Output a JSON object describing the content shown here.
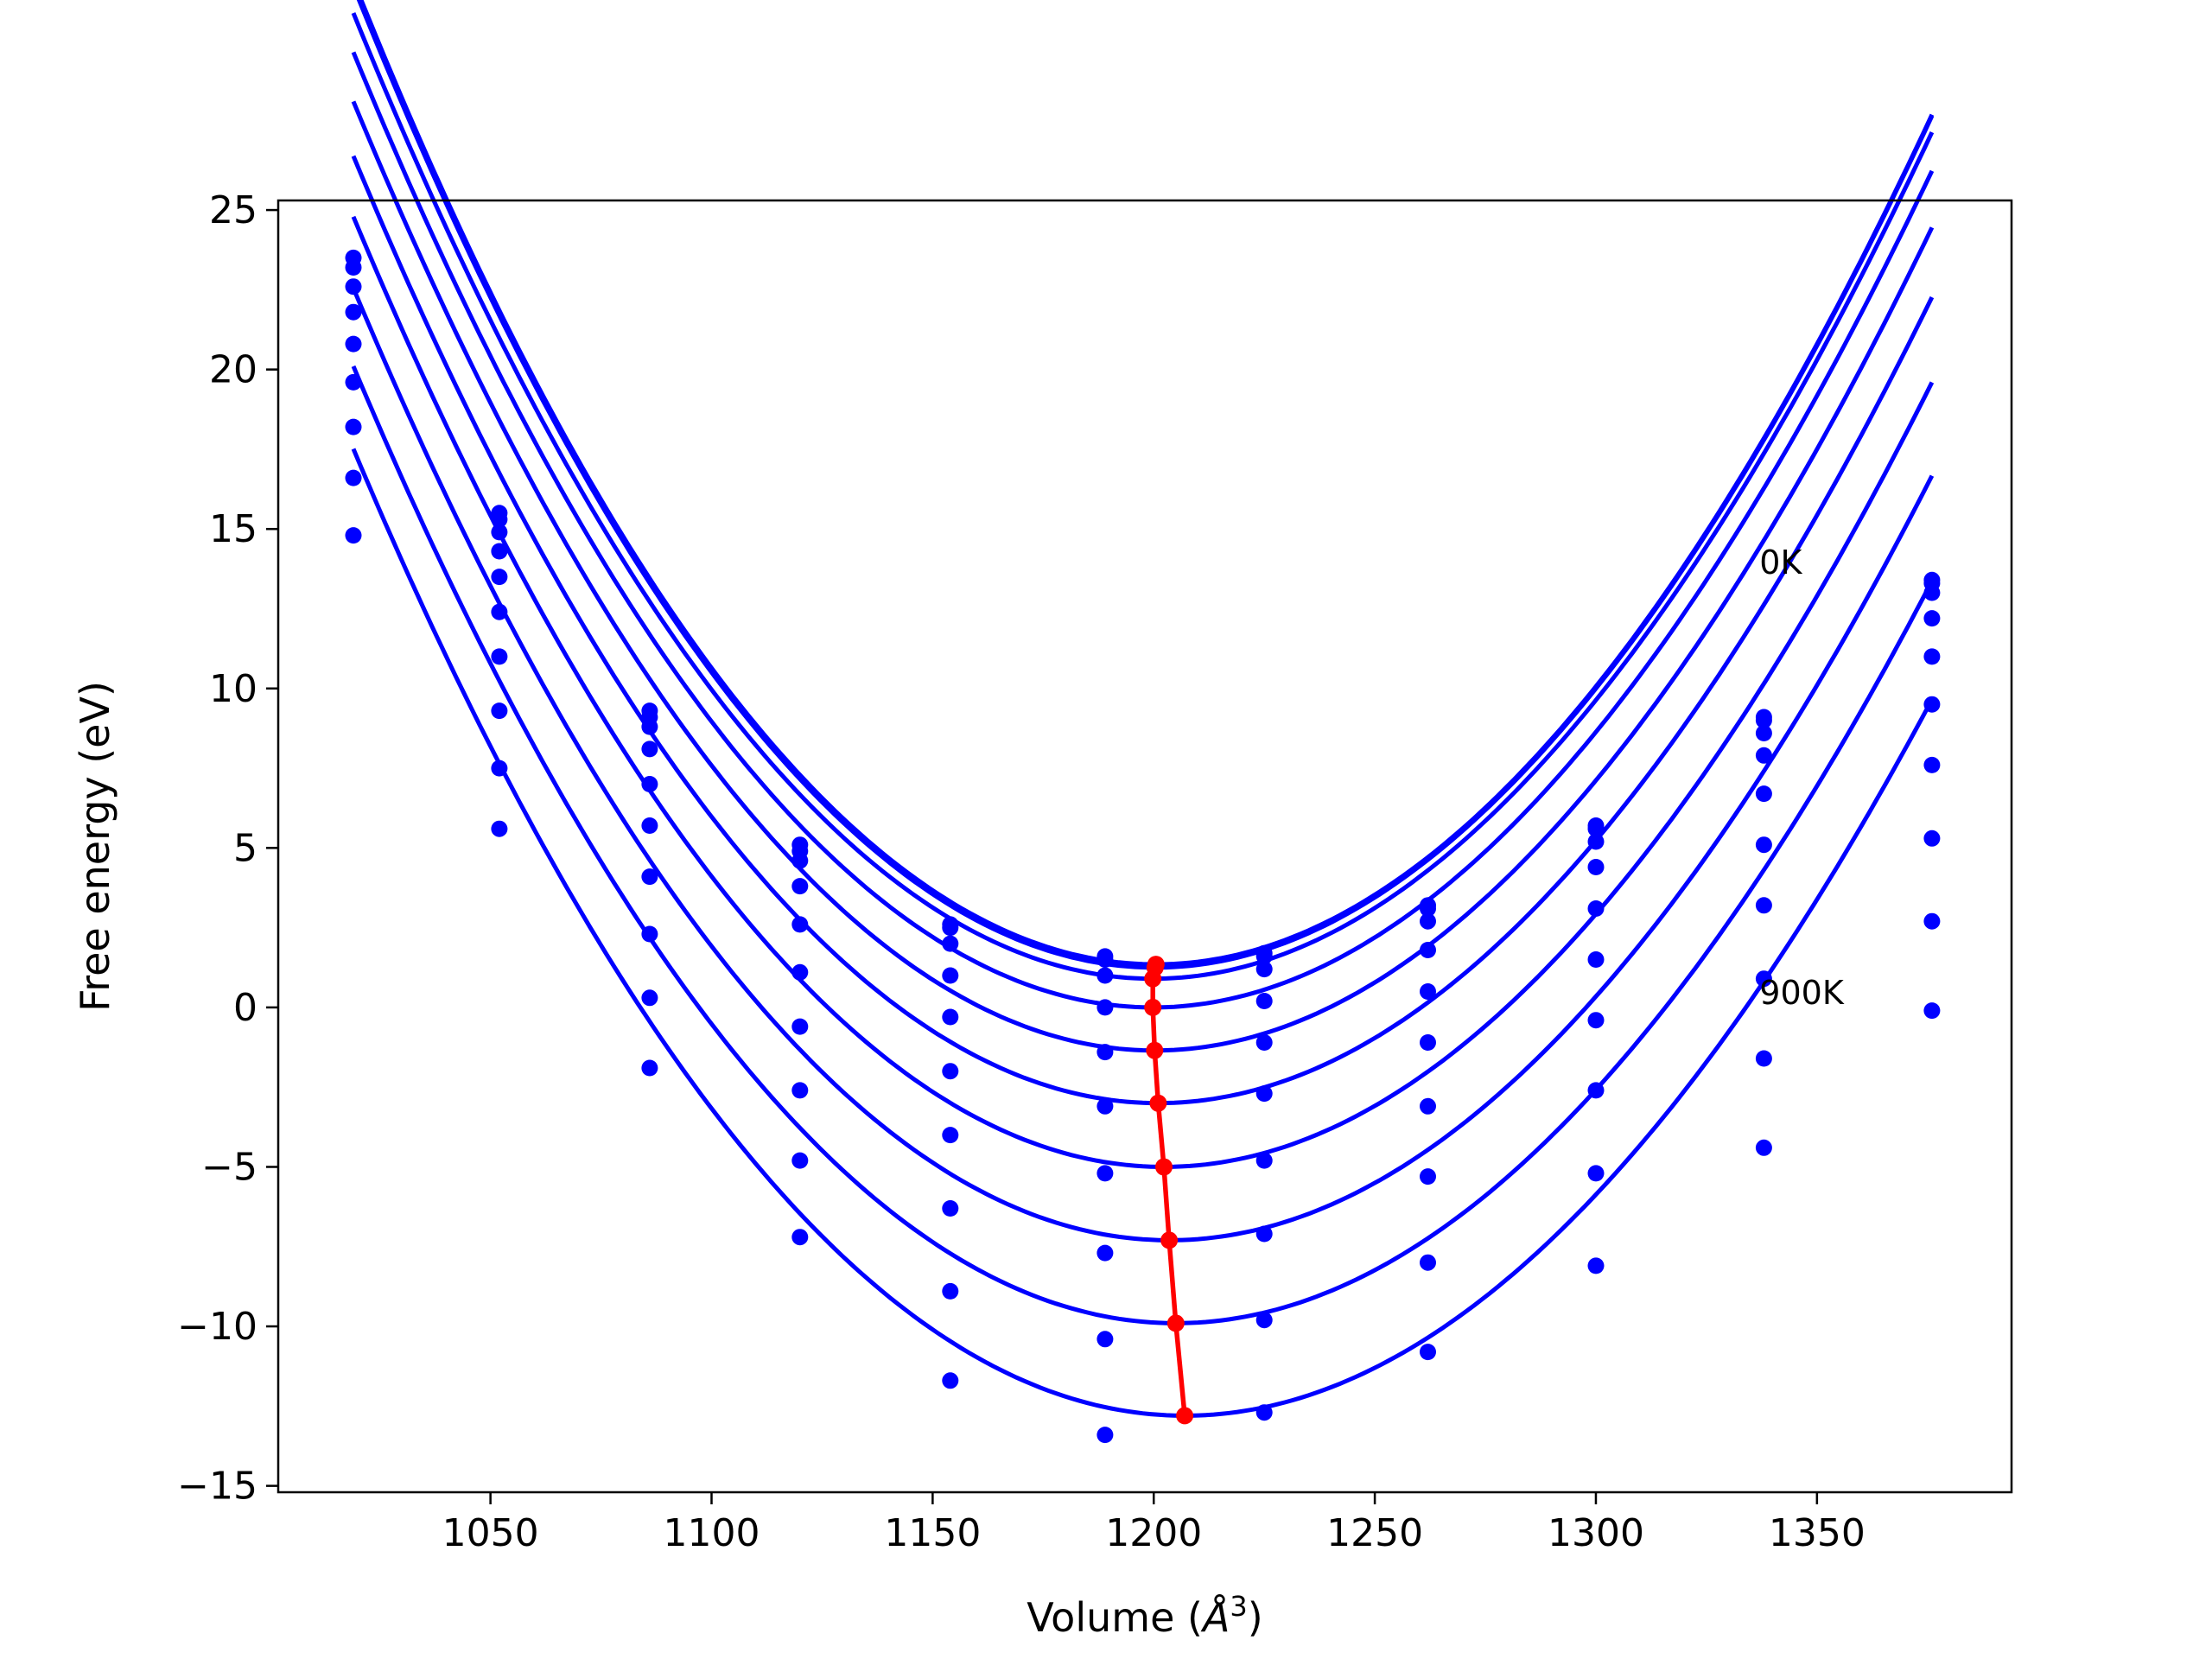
{
  "chart_data": {
    "type": "line",
    "title": "",
    "xlabel_main": "Volume (",
    "xlabel_symbol": "Å",
    "xlabel_power": "3",
    "xlabel_close": ")",
    "ylabel": "Free energy (eV)",
    "xlim": [
      1002,
      1394
    ],
    "ylim": [
      -15.2,
      25.3
    ],
    "xticks": [
      1050,
      1100,
      1150,
      1200,
      1250,
      1300,
      1350
    ],
    "yticks": [
      25,
      20,
      15,
      10,
      5,
      0,
      -5,
      -10,
      -15
    ],
    "ytick_labels": [
      "25",
      "20",
      "15",
      "10",
      "5",
      "0",
      "−5",
      "−10",
      "−15"
    ],
    "annotations": [
      {
        "text": "0K",
        "x": 1337,
        "y": 13.6
      },
      {
        "text": "900K",
        "x": 1337,
        "y": 0.1
      }
    ],
    "curve_color": "#0000ff",
    "minimum_color": "#ff0000",
    "volumes": [
      1019,
      1052,
      1086,
      1120,
      1154,
      1189,
      1225,
      1262,
      1300,
      1338,
      1376
    ],
    "series": [
      {
        "points": [
          23.5,
          15.5,
          9.3,
          5.1,
          2.6,
          1.6,
          1.7,
          3.2,
          5.7,
          9.1,
          13.4
        ],
        "fit": {
          "a": 0.0009,
          "v0": 1200.5,
          "fmin": 1.35,
          "b": -2e-07
        },
        "min": [
          1200.5,
          1.35
        ]
      },
      {
        "points": [
          23.2,
          15.3,
          9.1,
          4.9,
          2.5,
          1.5,
          1.6,
          3.1,
          5.6,
          9.0,
          13.3
        ],
        "fit": {
          "a": 0.0009,
          "v0": 1200.3,
          "fmin": 1.25,
          "b": -2e-07
        },
        "min": [
          1200.3,
          1.25
        ]
      },
      {
        "points": [
          22.6,
          14.9,
          8.8,
          4.6,
          2.0,
          1.0,
          1.2,
          2.7,
          5.2,
          8.6,
          13.0
        ],
        "fit": {
          "a": 0.00089,
          "v0": 1199.8,
          "fmin": 0.9,
          "b": -2e-07
        },
        "min": [
          1199.8,
          0.9
        ]
      },
      {
        "points": [
          21.8,
          14.3,
          8.1,
          3.8,
          1.0,
          0.0,
          0.2,
          1.8,
          4.4,
          7.9,
          12.2
        ],
        "fit": {
          "a": 0.00088,
          "v0": 1199.8,
          "fmin": 0.0,
          "b": -2e-07
        },
        "min": [
          1199.8,
          0.0
        ]
      },
      {
        "points": [
          20.8,
          13.5,
          7.0,
          2.6,
          -0.3,
          -1.4,
          -1.1,
          0.5,
          3.1,
          6.7,
          11.0
        ],
        "fit": {
          "a": 0.00087,
          "v0": 1200.2,
          "fmin": -1.35,
          "b": -2e-07
        },
        "min": [
          1200.2,
          -1.35
        ]
      },
      {
        "points": [
          19.6,
          12.4,
          5.7,
          1.1,
          -2.0,
          -3.1,
          -2.7,
          -1.1,
          1.5,
          5.1,
          9.5
        ],
        "fit": {
          "a": 0.00086,
          "v0": 1201.0,
          "fmin": -3.0,
          "b": -2e-07
        },
        "min": [
          1201.0,
          -3.0
        ]
      },
      {
        "points": [
          18.2,
          11.0,
          4.1,
          -0.6,
          -4.0,
          -5.2,
          -4.8,
          -3.1,
          -0.4,
          3.2,
          7.6
        ],
        "fit": {
          "a": 0.00085,
          "v0": 1202.3,
          "fmin": -5.0,
          "b": -2e-07
        },
        "min": [
          1202.3,
          -5.0
        ]
      },
      {
        "points": [
          16.6,
          9.3,
          2.3,
          -2.6,
          -6.3,
          -7.7,
          -7.1,
          -5.3,
          -2.6,
          0.9,
          5.3
        ],
        "fit": {
          "a": 0.00084,
          "v0": 1203.5,
          "fmin": -7.3,
          "b": -2e-07
        },
        "min": [
          1203.5,
          -7.3
        ]
      },
      {
        "points": [
          14.8,
          7.5,
          0.3,
          -4.8,
          -8.9,
          -10.4,
          -9.8,
          -8.0,
          -5.2,
          -1.6,
          2.7
        ],
        "fit": {
          "a": 0.00083,
          "v0": 1205.0,
          "fmin": -9.9,
          "b": -2e-07
        },
        "min": [
          1205.0,
          -9.9
        ]
      },
      {
        "points": [
          null,
          5.6,
          -1.9,
          -7.2,
          -11.7,
          -13.4,
          -12.7,
          -10.8,
          -8.1,
          -4.4,
          -0.1
        ],
        "fit": {
          "a": 0.00082,
          "v0": 1207.0,
          "fmin": -12.8,
          "b": -2e-07
        },
        "min": [
          1207.0,
          -12.8
        ]
      }
    ]
  }
}
